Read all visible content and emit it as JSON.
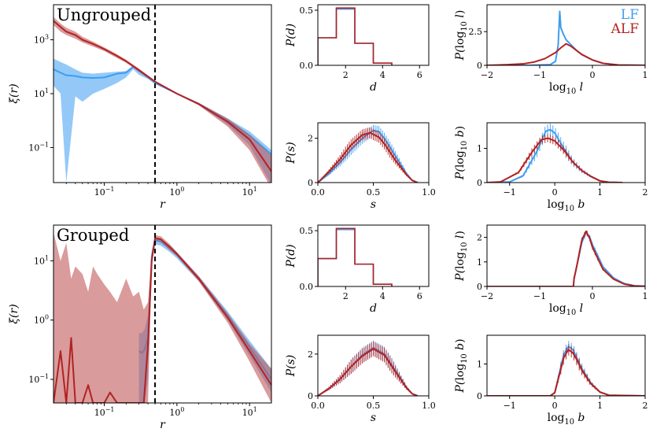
{
  "colors": {
    "lf": "#3d9df0",
    "alf": "#b22222",
    "alf_band": "#c2585a",
    "overlap": "#7a4c78"
  },
  "chart_data": [
    {
      "id": "ungrouped_xi",
      "type": "line",
      "title": "Ungrouped",
      "xlabel": "r",
      "ylabel": "ξ(r)",
      "xscale": "log",
      "yscale": "log",
      "xlim": [
        0.02,
        20
      ],
      "ylim": [
        0.005,
        20000
      ],
      "xticks": [
        0.1,
        1,
        10
      ],
      "xticklabels": [
        "10^-1",
        "10^0",
        "10^1"
      ],
      "yticks": [
        0.1,
        10,
        1000
      ],
      "yticklabels": [
        "10^-1",
        "10^1",
        "10^3"
      ],
      "vline": 0.5,
      "series": [
        {
          "name": "LF",
          "x": [
            0.02,
            0.025,
            0.03,
            0.04,
            0.05,
            0.07,
            0.1,
            0.15,
            0.2,
            0.25,
            0.3,
            0.4,
            0.5,
            1,
            2,
            5,
            10,
            20
          ],
          "y": [
            80,
            60,
            48,
            45,
            40,
            38,
            40,
            55,
            60,
            100,
            70,
            40,
            25,
            10,
            4.2,
            1.0,
            0.28,
            0.055
          ],
          "lo": [
            20,
            10,
            0.005,
            8,
            5,
            10,
            15,
            25,
            40,
            80,
            50,
            35,
            23,
            9.5,
            3.8,
            0.7,
            0.12,
            0.004
          ],
          "hi": [
            200,
            150,
            120,
            80,
            60,
            55,
            60,
            65,
            70,
            110,
            80,
            45,
            27,
            10.5,
            4.6,
            1.2,
            0.4,
            0.08
          ]
        },
        {
          "name": "ALF",
          "x": [
            0.02,
            0.025,
            0.03,
            0.04,
            0.05,
            0.07,
            0.1,
            0.15,
            0.2,
            0.3,
            0.5,
            1,
            2,
            5,
            10,
            20
          ],
          "y": [
            5000,
            3000,
            2000,
            1500,
            1000,
            700,
            450,
            250,
            160,
            75,
            28,
            10,
            4.1,
            0.9,
            0.2,
            0.013
          ],
          "lo": [
            3500,
            2000,
            1500,
            1100,
            800,
            560,
            380,
            210,
            140,
            65,
            26,
            9.5,
            3.7,
            0.6,
            0.08,
            0.003
          ],
          "hi": [
            7000,
            4000,
            2800,
            2000,
            1300,
            850,
            520,
            290,
            180,
            85,
            30,
            10.5,
            4.5,
            1.2,
            0.3,
            0.05
          ]
        }
      ]
    },
    {
      "id": "grouped_xi",
      "type": "line",
      "title": "Grouped",
      "xlabel": "r",
      "ylabel": "ξ(r)",
      "xscale": "log",
      "yscale": "log",
      "xlim": [
        0.02,
        20
      ],
      "ylim": [
        0.04,
        40
      ],
      "xticks": [
        0.1,
        1,
        10
      ],
      "xticklabels": [
        "10^-1",
        "10^0",
        "10^1"
      ],
      "yticks": [
        0.1,
        1,
        10
      ],
      "yticklabels": [
        "10^-1",
        "10^0",
        "10^1"
      ],
      "vline": 0.5,
      "series": [
        {
          "name": "LF",
          "x": [
            0.3,
            0.33,
            0.36,
            0.4,
            0.45,
            0.5,
            0.6,
            0.8,
            1,
            2,
            5,
            10,
            20
          ],
          "y": [
            0.3,
            0.28,
            0.32,
            0.5,
            12,
            22,
            21,
            16,
            12.5,
            5,
            1.2,
            0.35,
            0.1
          ],
          "lo": [
            0.04,
            0.04,
            0.04,
            0.1,
            9,
            19,
            18,
            14,
            11,
            4.5,
            1.0,
            0.25,
            0.06
          ],
          "hi": [
            0.6,
            0.6,
            0.7,
            1.2,
            15,
            25,
            24,
            18,
            14,
            5.5,
            1.4,
            0.45,
            0.15
          ]
        },
        {
          "name": "ALF",
          "x": [
            0.02,
            0.025,
            0.03,
            0.035,
            0.04,
            0.05,
            0.06,
            0.07,
            0.08,
            0.1,
            0.12,
            0.15,
            0.2,
            0.25,
            0.3,
            0.35,
            0.4,
            0.45,
            0.5,
            0.6,
            0.8,
            1,
            2,
            5,
            10,
            20
          ],
          "y": [
            0.04,
            0.3,
            0.04,
            0.5,
            0.04,
            0.04,
            0.08,
            0.04,
            0.04,
            0.04,
            0.06,
            0.04,
            0.04,
            0.04,
            0.04,
            0.04,
            0.4,
            10,
            24,
            23,
            17,
            13,
            5,
            1.1,
            0.3,
            0.08
          ],
          "lo": [
            0.04,
            0.04,
            0.04,
            0.04,
            0.04,
            0.04,
            0.04,
            0.04,
            0.04,
            0.04,
            0.04,
            0.04,
            0.04,
            0.04,
            0.04,
            0.04,
            0.04,
            8,
            22,
            21,
            15,
            12,
            4.5,
            0.9,
            0.2,
            0.04
          ],
          "hi": [
            30,
            10,
            20,
            5,
            8,
            6,
            3,
            8,
            6,
            4,
            3,
            2,
            5,
            2.5,
            3,
            1.5,
            2,
            13,
            27,
            26,
            19,
            14,
            5.5,
            1.3,
            0.4,
            0.15
          ]
        }
      ]
    },
    {
      "id": "ungrouped_pd",
      "type": "histogram",
      "xlabel": "d",
      "ylabel": "P(d)",
      "xlim": [
        0.5,
        6.5
      ],
      "ylim": [
        0,
        0.55
      ],
      "xticks": [
        2,
        4,
        6
      ],
      "yticks": [
        0,
        0.5
      ],
      "yticklabels": [
        "0.0",
        "0.5"
      ],
      "bin_edges": [
        0.5,
        1.5,
        2.5,
        3.5,
        4.5
      ],
      "series": [
        {
          "name": "LF",
          "values": [
            0.25,
            0.51,
            0.2,
            0.02
          ]
        },
        {
          "name": "ALF",
          "values": [
            0.25,
            0.52,
            0.2,
            0.02
          ]
        }
      ]
    },
    {
      "id": "ungrouped_pl",
      "type": "line",
      "xlabel": "log_10 l",
      "ylabel": "P(log_10 l)",
      "xlim": [
        -2,
        1
      ],
      "ylim": [
        0,
        4.5
      ],
      "xticks": [
        -2,
        -1,
        0,
        1
      ],
      "yticks": [
        0,
        2.5
      ],
      "series": [
        {
          "name": "LF",
          "x": [
            -2,
            -1.2,
            -0.8,
            -0.7,
            -0.65,
            -0.62,
            -0.6,
            -0.55,
            -0.5,
            -0.4,
            -0.3,
            -0.2,
            0,
            0.2,
            0.5,
            1
          ],
          "y": [
            0,
            0,
            0.05,
            0.3,
            1.5,
            4.0,
            2.8,
            2.3,
            1.9,
            1.5,
            1.1,
            0.8,
            0.4,
            0.15,
            0.02,
            0
          ]
        },
        {
          "name": "ALF",
          "x": [
            -2,
            -1.6,
            -1.3,
            -1.1,
            -0.9,
            -0.7,
            -0.6,
            -0.5,
            -0.4,
            -0.3,
            -0.2,
            0,
            0.2,
            0.5,
            1
          ],
          "y": [
            0,
            0.05,
            0.12,
            0.25,
            0.5,
            0.95,
            1.3,
            1.6,
            1.4,
            1.1,
            0.8,
            0.4,
            0.15,
            0.02,
            0
          ]
        }
      ]
    },
    {
      "id": "ungrouped_ps",
      "type": "line",
      "xlabel": "s",
      "ylabel": "P(s)",
      "xlim": [
        0,
        1
      ],
      "ylim": [
        0,
        2.7
      ],
      "xticks": [
        0,
        0.5,
        1
      ],
      "xticklabels": [
        "0.0",
        "0.5",
        "1.0"
      ],
      "yticks": [
        0,
        2
      ],
      "series": [
        {
          "name": "LF",
          "x": [
            0,
            0.1,
            0.2,
            0.3,
            0.4,
            0.5,
            0.55,
            0.6,
            0.7,
            0.8,
            0.85,
            0.9
          ],
          "y": [
            0,
            0.4,
            0.9,
            1.5,
            2.0,
            2.35,
            2.3,
            2.0,
            1.2,
            0.4,
            0.1,
            0
          ],
          "err": 0.25
        },
        {
          "name": "ALF",
          "x": [
            0,
            0.1,
            0.2,
            0.3,
            0.4,
            0.47,
            0.55,
            0.6,
            0.7,
            0.8,
            0.85,
            0.9
          ],
          "y": [
            0,
            0.5,
            1.05,
            1.7,
            2.15,
            2.25,
            2.05,
            1.75,
            1.0,
            0.35,
            0.1,
            0
          ],
          "err": 0.25
        }
      ]
    },
    {
      "id": "ungrouped_pb",
      "type": "line",
      "xlabel": "log_10 b",
      "ylabel": "P(log_10 b)",
      "xlim": [
        -1.5,
        2
      ],
      "ylim": [
        0,
        1.75
      ],
      "xticks": [
        -1,
        0,
        1,
        2
      ],
      "yticks": [
        0,
        1
      ],
      "series": [
        {
          "name": "LF",
          "x": [
            -1.5,
            -1,
            -0.7,
            -0.4,
            -0.2,
            -0.1,
            0,
            0.2,
            0.4,
            0.6,
            0.8,
            1,
            1.2,
            1.5
          ],
          "y": [
            0,
            0.02,
            0.2,
            0.9,
            1.5,
            1.55,
            1.45,
            1.0,
            0.6,
            0.35,
            0.18,
            0.05,
            0.01,
            0
          ],
          "err": 0.18
        },
        {
          "name": "ALF",
          "x": [
            -1.5,
            -1.2,
            -0.8,
            -0.5,
            -0.3,
            -0.15,
            0,
            0.2,
            0.4,
            0.6,
            0.8,
            1,
            1.2,
            1.5
          ],
          "y": [
            0,
            0.02,
            0.3,
            0.9,
            1.25,
            1.3,
            1.22,
            0.95,
            0.6,
            0.35,
            0.18,
            0.05,
            0.01,
            0
          ],
          "err": 0.12
        }
      ]
    },
    {
      "id": "grouped_pd",
      "type": "histogram",
      "xlabel": "d",
      "ylabel": "P(d)",
      "xlim": [
        0.5,
        6.5
      ],
      "ylim": [
        0,
        0.55
      ],
      "xticks": [
        2,
        4,
        6
      ],
      "yticks": [
        0,
        0.5
      ],
      "yticklabels": [
        "0.0",
        "0.5"
      ],
      "bin_edges": [
        0.5,
        1.5,
        2.5,
        3.5,
        4.5
      ],
      "series": [
        {
          "name": "LF",
          "values": [
            0.25,
            0.51,
            0.2,
            0.02
          ]
        },
        {
          "name": "ALF",
          "values": [
            0.25,
            0.52,
            0.2,
            0.02
          ]
        }
      ]
    },
    {
      "id": "grouped_pl",
      "type": "line",
      "xlabel": "log_10 l",
      "ylabel": "P(log_10 l)",
      "xlim": [
        -2,
        1
      ],
      "ylim": [
        0,
        2.5
      ],
      "xticks": [
        -2,
        -1,
        0,
        1
      ],
      "yticks": [
        0,
        1,
        2
      ],
      "series": [
        {
          "name": "LF",
          "x": [
            -2,
            -0.36,
            -0.35,
            -0.3,
            -0.2,
            -0.12,
            -0.05,
            0,
            0.2,
            0.4,
            0.6,
            0.8,
            1
          ],
          "y": [
            0,
            0,
            0.3,
            0.8,
            1.8,
            2.2,
            2.0,
            1.7,
            0.8,
            0.35,
            0.12,
            0.03,
            0.01
          ],
          "err": 0.1
        },
        {
          "name": "ALF",
          "x": [
            -2,
            -0.36,
            -0.35,
            -0.3,
            -0.2,
            -0.12,
            -0.05,
            0,
            0.2,
            0.4,
            0.6,
            0.8,
            1
          ],
          "y": [
            0,
            0,
            0.3,
            0.8,
            1.9,
            2.25,
            1.95,
            1.6,
            0.7,
            0.3,
            0.1,
            0.02,
            0.01
          ],
          "err": 0.1
        }
      ]
    },
    {
      "id": "grouped_ps",
      "type": "line",
      "xlabel": "s",
      "ylabel": "P(s)",
      "xlim": [
        0,
        1
      ],
      "ylim": [
        0,
        2.9
      ],
      "xticks": [
        0,
        0.5,
        1
      ],
      "xticklabels": [
        "0.0",
        "0.5",
        "1.0"
      ],
      "yticks": [
        0,
        2
      ],
      "series": [
        {
          "name": "LF",
          "x": [
            0,
            0.1,
            0.2,
            0.3,
            0.4,
            0.5,
            0.6,
            0.7,
            0.8,
            0.85,
            0.9
          ],
          "y": [
            0,
            0.35,
            0.8,
            1.4,
            1.95,
            2.3,
            2.0,
            1.2,
            0.4,
            0.1,
            0
          ],
          "err": 0.35
        },
        {
          "name": "ALF",
          "x": [
            0,
            0.1,
            0.2,
            0.3,
            0.4,
            0.5,
            0.6,
            0.7,
            0.8,
            0.85,
            0.9
          ],
          "y": [
            0,
            0.35,
            0.8,
            1.4,
            1.9,
            2.25,
            1.95,
            1.15,
            0.38,
            0.1,
            0
          ],
          "err": 0.35
        }
      ]
    },
    {
      "id": "grouped_pb",
      "type": "line",
      "xlabel": "log_10 b",
      "ylabel": "P(log_10 b)",
      "xlim": [
        -1.5,
        2
      ],
      "ylim": [
        0,
        1.9
      ],
      "xticks": [
        -1,
        0,
        1,
        2
      ],
      "yticks": [
        0,
        1
      ],
      "series": [
        {
          "name": "LF",
          "x": [
            -1.5,
            -0.1,
            0,
            0.1,
            0.2,
            0.3,
            0.4,
            0.5,
            0.6,
            0.8,
            1,
            1.2,
            2
          ],
          "y": [
            0,
            0,
            0.1,
            0.7,
            1.3,
            1.55,
            1.45,
            1.15,
            0.85,
            0.4,
            0.12,
            0.02,
            0
          ],
          "err": 0.18
        },
        {
          "name": "ALF",
          "x": [
            -1.5,
            -0.1,
            0,
            0.1,
            0.2,
            0.3,
            0.4,
            0.5,
            0.6,
            0.8,
            1,
            1.2,
            2
          ],
          "y": [
            0,
            0,
            0.1,
            0.65,
            1.2,
            1.45,
            1.35,
            1.1,
            0.8,
            0.38,
            0.12,
            0.02,
            0
          ],
          "err": 0.18
        }
      ]
    }
  ]
}
